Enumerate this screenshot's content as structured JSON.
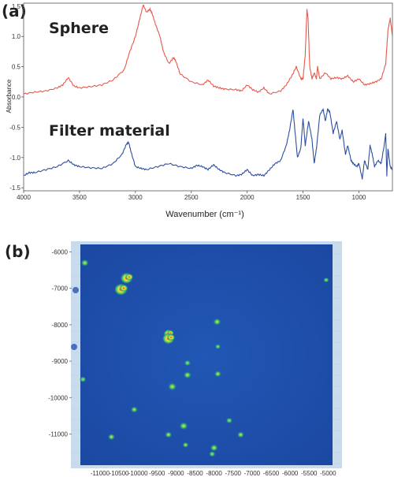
{
  "panel_a_label": "(a)",
  "panel_b_label": "(b)",
  "colors": {
    "sphere": "#e8584a",
    "filter": "#2e4f9e",
    "map_bg": "#1d4fa8",
    "map_frame": "#c8dced",
    "hot": "#e5321b",
    "warm": "#f2e43a",
    "cool": "#39c06b"
  },
  "chart_data": [
    {
      "type": "line",
      "xlabel": "Wavenumber (cm⁻¹)",
      "ylabel": "Absorbance",
      "xlim": [
        4000,
        700
      ],
      "ylim": [
        -1.55,
        1.55
      ],
      "x_ticks": [
        4000,
        3500,
        3000,
        2500,
        2000,
        1500,
        1000
      ],
      "y_ticks": [
        1.5,
        1.0,
        0.5,
        0.0,
        -0.5,
        -1.0,
        -1.5
      ],
      "y_tick_labels": [
        "1.5",
        "1.0",
        "0.5",
        "0.0",
        "-0.5",
        "-1.0",
        "-1.5"
      ],
      "series": [
        {
          "name": "Sphere",
          "x": [
            4000,
            3900,
            3800,
            3700,
            3650,
            3600,
            3550,
            3500,
            3400,
            3300,
            3200,
            3100,
            3050,
            3000,
            2960,
            2930,
            2900,
            2870,
            2850,
            2820,
            2780,
            2750,
            2700,
            2660,
            2640,
            2600,
            2500,
            2400,
            2350,
            2300,
            2250,
            2200,
            2100,
            2050,
            2000,
            1950,
            1900,
            1850,
            1800,
            1700,
            1650,
            1600,
            1560,
            1520,
            1500,
            1480,
            1465,
            1455,
            1440,
            1420,
            1400,
            1380,
            1370,
            1350,
            1300,
            1250,
            1200,
            1150,
            1100,
            1050,
            1000,
            950,
            900,
            850,
            800,
            760,
            740,
            720,
            700
          ],
          "values": [
            0.05,
            0.08,
            0.1,
            0.15,
            0.2,
            0.32,
            0.18,
            0.15,
            0.17,
            0.2,
            0.28,
            0.45,
            0.75,
            1.0,
            1.3,
            1.52,
            1.4,
            1.45,
            1.38,
            1.2,
            1.0,
            0.75,
            0.55,
            0.65,
            0.6,
            0.38,
            0.25,
            0.2,
            0.28,
            0.18,
            0.15,
            0.13,
            0.12,
            0.1,
            0.2,
            0.12,
            0.08,
            0.15,
            0.05,
            0.1,
            0.2,
            0.35,
            0.5,
            0.3,
            0.3,
            0.7,
            1.45,
            1.3,
            0.5,
            0.3,
            0.4,
            0.3,
            0.5,
            0.3,
            0.4,
            0.3,
            0.32,
            0.3,
            0.35,
            0.25,
            0.3,
            0.2,
            0.22,
            0.25,
            0.3,
            0.55,
            1.1,
            1.3,
            1.0
          ]
        },
        {
          "name": "Filter material",
          "x": [
            4000,
            3950,
            3900,
            3800,
            3700,
            3600,
            3550,
            3500,
            3400,
            3300,
            3200,
            3120,
            3080,
            3060,
            3040,
            3000,
            2950,
            2900,
            2800,
            2700,
            2600,
            2500,
            2450,
            2400,
            2350,
            2300,
            2250,
            2200,
            2100,
            2050,
            2000,
            1950,
            1900,
            1850,
            1800,
            1750,
            1700,
            1650,
            1620,
            1590,
            1570,
            1550,
            1520,
            1500,
            1480,
            1450,
            1420,
            1400,
            1380,
            1350,
            1320,
            1300,
            1280,
            1260,
            1230,
            1200,
            1170,
            1150,
            1120,
            1100,
            1070,
            1050,
            1020,
            1000,
            970,
            950,
            920,
            900,
            880,
            860,
            830,
            800,
            770,
            760,
            750,
            740,
            720,
            700
          ],
          "values": [
            -1.3,
            -1.25,
            -1.25,
            -1.2,
            -1.15,
            -1.05,
            -1.12,
            -1.15,
            -1.17,
            -1.18,
            -1.1,
            -0.95,
            -0.78,
            -0.75,
            -0.9,
            -1.15,
            -1.18,
            -1.2,
            -1.15,
            -1.1,
            -1.15,
            -1.18,
            -1.13,
            -1.15,
            -1.2,
            -1.12,
            -1.2,
            -1.25,
            -1.3,
            -1.28,
            -1.2,
            -1.3,
            -1.28,
            -1.3,
            -1.2,
            -1.1,
            -1.05,
            -0.8,
            -0.55,
            -0.2,
            -0.6,
            -1.0,
            -0.85,
            -0.35,
            -0.8,
            -0.4,
            -0.7,
            -1.1,
            -0.85,
            -0.3,
            -0.2,
            -0.4,
            -0.2,
            -0.25,
            -0.6,
            -0.4,
            -0.7,
            -0.55,
            -0.95,
            -0.8,
            -1.05,
            -1.1,
            -1.15,
            -1.1,
            -1.35,
            -1.05,
            -1.2,
            -0.8,
            -0.95,
            -1.15,
            -1.05,
            -1.1,
            -0.75,
            -0.6,
            -1.3,
            -0.85,
            -1.15,
            -1.2
          ]
        }
      ]
    },
    {
      "type": "heatmap",
      "xlim": [
        -11600,
        -4800
      ],
      "ylim": [
        -11900,
        -5750
      ],
      "x_ticks": [
        -11000,
        -10000,
        -9000,
        -8000,
        -7000,
        -6000,
        -5000
      ],
      "x_tick_labels": [
        "-11000",
        "-10000",
        "-9000",
        "-8000",
        "-7000",
        "-6000",
        "-5000"
      ],
      "x_tick_labels_minor": [
        -10500,
        -9500,
        -8500,
        -7500,
        -6500,
        -5500
      ],
      "x_tick_labels_minor_text": [
        "-10500",
        "-9500",
        "-8500",
        "-7500",
        "-6500",
        "-5500"
      ],
      "y_ticks": [
        -6000,
        -7000,
        -8000,
        -9000,
        -10000,
        -11000
      ],
      "y_tick_labels": [
        "-6000",
        "-7000",
        "-8000",
        "-9000",
        "-10000",
        "-11000"
      ],
      "hotspots": [
        {
          "x": -11400,
          "y": -6300,
          "intensity": 0.7,
          "size": 1.0
        },
        {
          "x": -10300,
          "y": -6720,
          "intensity": 1.0,
          "size": 1.5
        },
        {
          "x": -10450,
          "y": -7030,
          "intensity": 1.0,
          "size": 1.6
        },
        {
          "x": -9200,
          "y": -8250,
          "intensity": 0.85,
          "size": 1.2
        },
        {
          "x": -9200,
          "y": -8380,
          "intensity": 1.0,
          "size": 1.5
        },
        {
          "x": -7920,
          "y": -7920,
          "intensity": 0.8,
          "size": 1.0
        },
        {
          "x": -7900,
          "y": -8600,
          "intensity": 0.3,
          "size": 0.7
        },
        {
          "x": -8700,
          "y": -9050,
          "intensity": 0.35,
          "size": 0.8
        },
        {
          "x": -8700,
          "y": -9380,
          "intensity": 0.6,
          "size": 1.0
        },
        {
          "x": -7900,
          "y": -9350,
          "intensity": 0.5,
          "size": 0.9
        },
        {
          "x": -9100,
          "y": -9700,
          "intensity": 0.6,
          "size": 1.1
        },
        {
          "x": -11450,
          "y": -9500,
          "intensity": 0.4,
          "size": 0.8
        },
        {
          "x": -5050,
          "y": -6770,
          "intensity": 0.3,
          "size": 0.7
        },
        {
          "x": -10100,
          "y": -10330,
          "intensity": 0.5,
          "size": 0.9
        },
        {
          "x": -7600,
          "y": -10630,
          "intensity": 0.4,
          "size": 0.8
        },
        {
          "x": -8800,
          "y": -10780,
          "intensity": 0.7,
          "size": 1.1
        },
        {
          "x": -10700,
          "y": -11080,
          "intensity": 0.6,
          "size": 0.9
        },
        {
          "x": -9200,
          "y": -11020,
          "intensity": 0.6,
          "size": 0.9
        },
        {
          "x": -7300,
          "y": -11020,
          "intensity": 0.5,
          "size": 0.9
        },
        {
          "x": -8750,
          "y": -11300,
          "intensity": 0.5,
          "size": 0.8
        },
        {
          "x": -8000,
          "y": -11380,
          "intensity": 0.6,
          "size": 1.0
        },
        {
          "x": -8050,
          "y": -11550,
          "intensity": 0.4,
          "size": 0.8
        }
      ]
    }
  ]
}
